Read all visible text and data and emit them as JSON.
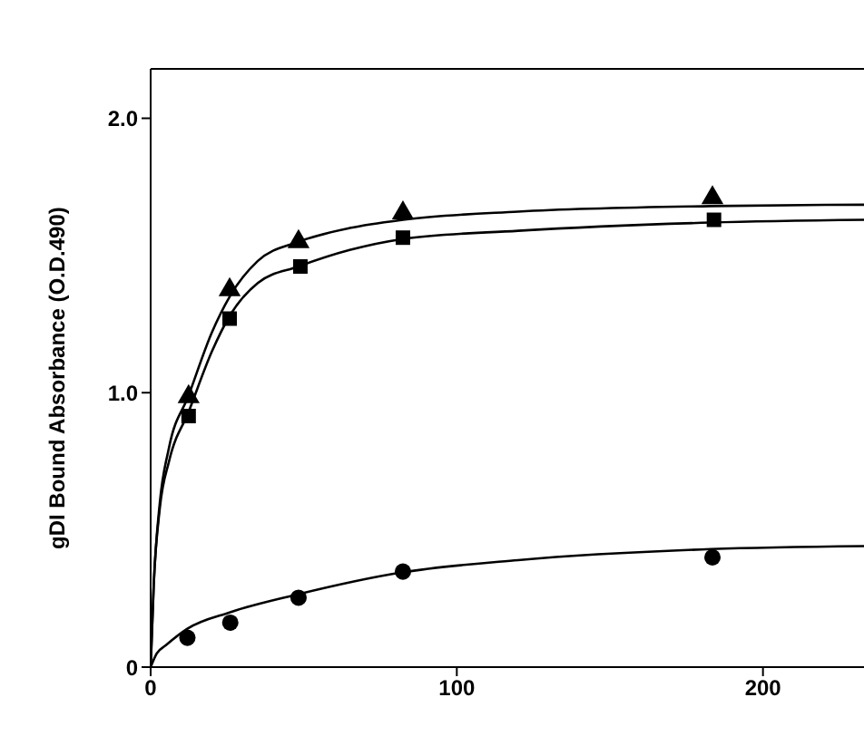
{
  "chart_data": {
    "type": "scatter",
    "ylabel": "gDI Bound Absorbance (O.D.490)",
    "xlim": [
      0,
      233
    ],
    "ylim": [
      0,
      2.18
    ],
    "xticks": [
      0,
      100,
      200
    ],
    "yticks": [
      0,
      {
        "value": 1,
        "label": "1.0"
      },
      {
        "value": 2,
        "label": "2.0"
      }
    ],
    "legend": false,
    "series": [
      {
        "marker": "triangle",
        "color": "#000000",
        "x": [
          12.4,
          25.8,
          48.3,
          82.4,
          183.5
        ],
        "values": [
          0.985,
          1.375,
          1.55,
          1.655,
          1.71
        ]
      },
      {
        "marker": "square",
        "color": "#000000",
        "x": [
          12.4,
          25.8,
          48.9,
          82.4,
          184
        ],
        "values": [
          0.915,
          1.27,
          1.46,
          1.565,
          1.63
        ]
      },
      {
        "marker": "circle",
        "color": "#000000",
        "x": [
          12,
          26,
          48.3,
          82.4,
          183.5
        ],
        "values": [
          0.107,
          0.162,
          0.253,
          0.348,
          0.4
        ]
      },
      {
        "type": "line",
        "marker": "none",
        "line_style": "solid",
        "color": "#000000",
        "x": [
          0,
          1,
          3,
          6,
          12.4,
          20,
          25.8,
          35,
          48.3,
          65,
          82.4,
          120,
          183,
          233
        ],
        "values": [
          0,
          0.3,
          0.6,
          0.8,
          0.99,
          1.22,
          1.35,
          1.48,
          1.55,
          1.6,
          1.63,
          1.66,
          1.68,
          1.685
        ]
      },
      {
        "type": "line",
        "marker": "none",
        "line_style": "solid",
        "color": "#000000",
        "x": [
          0,
          1,
          3,
          6,
          12.4,
          20,
          25.8,
          35,
          48.3,
          65,
          82.4,
          120,
          183,
          233
        ],
        "values": [
          0,
          0.3,
          0.58,
          0.75,
          0.93,
          1.15,
          1.28,
          1.4,
          1.46,
          1.52,
          1.56,
          1.59,
          1.62,
          1.63
        ]
      },
      {
        "type": "line",
        "marker": "none",
        "line_style": "solid",
        "color": "#000000",
        "x": [
          0,
          2,
          5,
          12,
          26,
          48,
          82,
          120,
          183,
          233
        ],
        "values": [
          0,
          0.05,
          0.08,
          0.14,
          0.2,
          0.265,
          0.345,
          0.39,
          0.43,
          0.441
        ]
      }
    ]
  }
}
